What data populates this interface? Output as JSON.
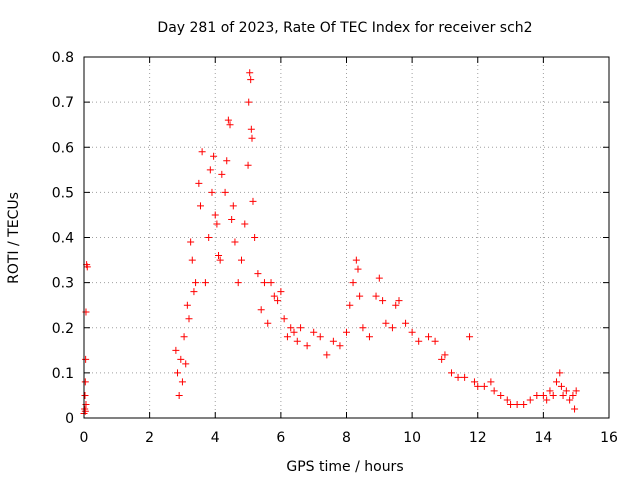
{
  "chart_data": {
    "type": "scatter",
    "title": "Day 281 of 2023, Rate Of TEC Index for receiver sch2",
    "xlabel": "GPS time / hours",
    "ylabel": "ROTI / TECUs",
    "xlim": [
      0,
      16
    ],
    "ylim": [
      0,
      0.8
    ],
    "xticks": [
      "0",
      "2",
      "4",
      "6",
      "8",
      "10",
      "12",
      "14",
      "16"
    ],
    "yticks": [
      "0",
      "0.1",
      "0.2",
      "0.3",
      "0.4",
      "0.5",
      "0.6",
      "0.7",
      "0.8"
    ],
    "grid": true,
    "marker": "+",
    "color": "#ff0000",
    "series": [
      {
        "name": "ROTI",
        "points": [
          [
            0.0,
            0.01
          ],
          [
            0.02,
            0.02
          ],
          [
            0.03,
            0.05
          ],
          [
            0.04,
            0.08
          ],
          [
            0.05,
            0.13
          ],
          [
            0.06,
            0.235
          ],
          [
            0.08,
            0.34
          ],
          [
            0.1,
            0.335
          ],
          [
            0.06,
            0.03
          ],
          [
            0.04,
            0.015
          ],
          [
            2.8,
            0.15
          ],
          [
            2.85,
            0.1
          ],
          [
            2.9,
            0.05
          ],
          [
            2.95,
            0.13
          ],
          [
            3.0,
            0.08
          ],
          [
            3.05,
            0.18
          ],
          [
            3.1,
            0.12
          ],
          [
            3.15,
            0.25
          ],
          [
            3.2,
            0.22
          ],
          [
            3.25,
            0.39
          ],
          [
            3.3,
            0.35
          ],
          [
            3.35,
            0.28
          ],
          [
            3.4,
            0.3
          ],
          [
            3.5,
            0.52
          ],
          [
            3.55,
            0.47
          ],
          [
            3.6,
            0.59
          ],
          [
            3.7,
            0.3
          ],
          [
            3.8,
            0.4
          ],
          [
            3.85,
            0.55
          ],
          [
            3.9,
            0.5
          ],
          [
            3.95,
            0.58
          ],
          [
            4.0,
            0.45
          ],
          [
            4.05,
            0.43
          ],
          [
            4.1,
            0.36
          ],
          [
            4.15,
            0.35
          ],
          [
            4.2,
            0.54
          ],
          [
            4.3,
            0.5
          ],
          [
            4.35,
            0.57
          ],
          [
            4.4,
            0.66
          ],
          [
            4.45,
            0.65
          ],
          [
            4.5,
            0.44
          ],
          [
            4.55,
            0.47
          ],
          [
            4.6,
            0.39
          ],
          [
            4.7,
            0.3
          ],
          [
            4.8,
            0.35
          ],
          [
            4.9,
            0.43
          ],
          [
            5.0,
            0.56
          ],
          [
            5.02,
            0.7
          ],
          [
            5.05,
            0.765
          ],
          [
            5.08,
            0.75
          ],
          [
            5.1,
            0.64
          ],
          [
            5.12,
            0.62
          ],
          [
            5.15,
            0.48
          ],
          [
            5.2,
            0.4
          ],
          [
            5.3,
            0.32
          ],
          [
            5.4,
            0.24
          ],
          [
            5.5,
            0.3
          ],
          [
            5.6,
            0.21
          ],
          [
            5.7,
            0.3
          ],
          [
            5.8,
            0.27
          ],
          [
            5.9,
            0.26
          ],
          [
            6.0,
            0.28
          ],
          [
            6.1,
            0.22
          ],
          [
            6.2,
            0.18
          ],
          [
            6.3,
            0.2
          ],
          [
            6.4,
            0.19
          ],
          [
            6.5,
            0.17
          ],
          [
            6.6,
            0.2
          ],
          [
            6.8,
            0.16
          ],
          [
            7.0,
            0.19
          ],
          [
            7.2,
            0.18
          ],
          [
            7.4,
            0.14
          ],
          [
            7.6,
            0.17
          ],
          [
            7.8,
            0.16
          ],
          [
            8.0,
            0.19
          ],
          [
            8.1,
            0.25
          ],
          [
            8.2,
            0.3
          ],
          [
            8.3,
            0.35
          ],
          [
            8.35,
            0.33
          ],
          [
            8.4,
            0.27
          ],
          [
            8.5,
            0.2
          ],
          [
            8.7,
            0.18
          ],
          [
            8.9,
            0.27
          ],
          [
            9.0,
            0.31
          ],
          [
            9.1,
            0.26
          ],
          [
            9.2,
            0.21
          ],
          [
            9.4,
            0.2
          ],
          [
            9.5,
            0.25
          ],
          [
            9.6,
            0.26
          ],
          [
            9.8,
            0.21
          ],
          [
            10.0,
            0.19
          ],
          [
            10.2,
            0.17
          ],
          [
            10.5,
            0.18
          ],
          [
            10.7,
            0.17
          ],
          [
            10.9,
            0.13
          ],
          [
            11.0,
            0.14
          ],
          [
            11.2,
            0.1
          ],
          [
            11.4,
            0.09
          ],
          [
            11.6,
            0.09
          ],
          [
            11.75,
            0.18
          ],
          [
            11.9,
            0.08
          ],
          [
            12.0,
            0.07
          ],
          [
            12.2,
            0.07
          ],
          [
            12.4,
            0.08
          ],
          [
            12.5,
            0.06
          ],
          [
            12.7,
            0.05
          ],
          [
            12.9,
            0.04
          ],
          [
            13.0,
            0.03
          ],
          [
            13.2,
            0.03
          ],
          [
            13.4,
            0.03
          ],
          [
            13.6,
            0.04
          ],
          [
            13.8,
            0.05
          ],
          [
            14.0,
            0.05
          ],
          [
            14.1,
            0.04
          ],
          [
            14.2,
            0.06
          ],
          [
            14.3,
            0.05
          ],
          [
            14.4,
            0.08
          ],
          [
            14.5,
            0.1
          ],
          [
            14.55,
            0.07
          ],
          [
            14.6,
            0.05
          ],
          [
            14.7,
            0.06
          ],
          [
            14.8,
            0.04
          ],
          [
            14.9,
            0.05
          ],
          [
            15.0,
            0.06
          ],
          [
            14.95,
            0.02
          ]
        ]
      }
    ]
  }
}
